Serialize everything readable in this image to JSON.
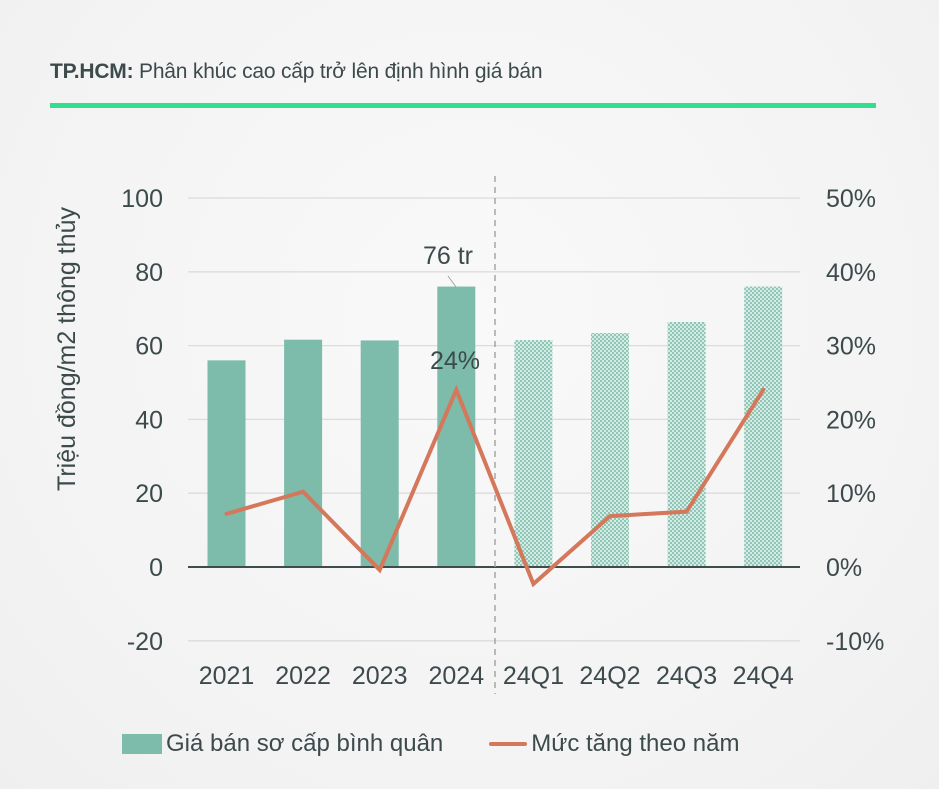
{
  "header": {
    "title_bold": "TP.HCM:",
    "title_rest": " Phân khúc cao cấp trở lên định hình giá bán",
    "rule_color": "#33df8f"
  },
  "chart_data": {
    "type": "bar+line",
    "title": "TP.HCM: Phân khúc cao cấp trở lên định hình giá bán",
    "categories": [
      "2021",
      "2022",
      "2023",
      "2024",
      "24Q1",
      "24Q2",
      "24Q3",
      "24Q4"
    ],
    "series": [
      {
        "name": "Giá bán sơ cấp bình quân",
        "type": "bar",
        "axis": "left",
        "values": [
          56,
          61.6,
          61.4,
          76,
          61.5,
          63.4,
          66.4,
          76
        ],
        "color": "#7dbbab",
        "pattern": [
          "solid",
          "solid",
          "solid",
          "solid",
          "checker",
          "checker",
          "checker",
          "checker"
        ]
      },
      {
        "name": "Mức tăng theo năm",
        "type": "line",
        "axis": "right",
        "values": [
          7.2,
          10.2,
          -0.4,
          24,
          -2.3,
          6.9,
          7.5,
          24
        ],
        "color": "#d4775a"
      }
    ],
    "ylabel": "Triệu đồng/m2 thông thủy",
    "ylim": [
      -20,
      100
    ],
    "yticks": [
      "100",
      "80",
      "60",
      "40",
      "20",
      "0",
      "-20"
    ],
    "y2lim": [
      -10,
      50
    ],
    "y2ticks": [
      "50%",
      "40%",
      "30%",
      "20%",
      "10%",
      "0%",
      "-10%"
    ],
    "annotations": [
      {
        "text": "76 tr",
        "target": "2024 bar"
      },
      {
        "text": "24%",
        "target": "2024 line point"
      }
    ],
    "divider": "dashed vertical line between 2024 and 24Q1",
    "grid": true,
    "legend_position": "bottom"
  },
  "legend": {
    "bar_label": "Giá bán sơ cấp bình quân",
    "line_label": "Mức tăng theo năm"
  }
}
